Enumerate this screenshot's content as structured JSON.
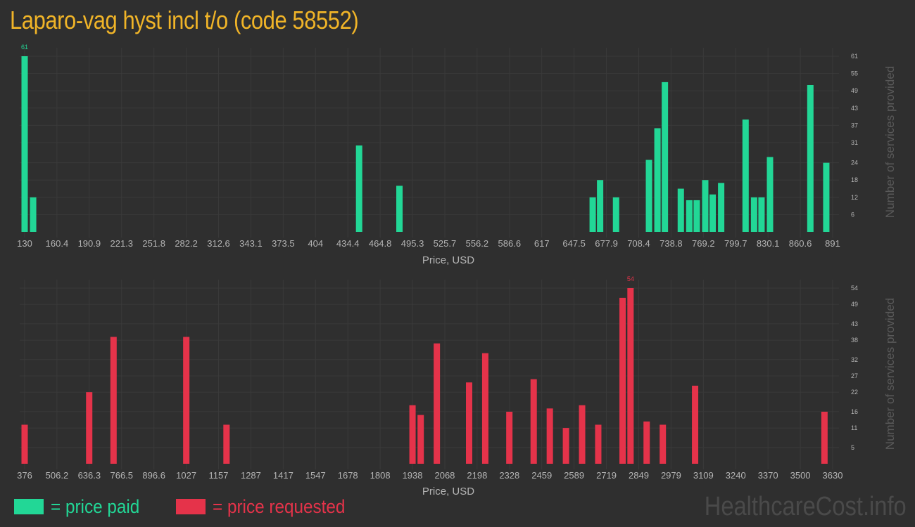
{
  "title": "Laparo-vag hyst incl t/o (code 58552)",
  "legend": {
    "paid_label": "= price paid",
    "requested_label": "= price requested"
  },
  "watermark": "HealthcareCost.info",
  "colors": {
    "background": "#2f2f2f",
    "paid": "#22d796",
    "requested": "#e5334a",
    "title": "#f0b428",
    "axis_text": "#b4b4b4"
  },
  "chart_data": [
    {
      "type": "bar",
      "name_ref": "price paid",
      "xlabel": "Price, USD",
      "ylabel": "Number of services provided",
      "xlim": [
        130,
        891
      ],
      "ylim": [
        0,
        61
      ],
      "x_ticks": [
        "130",
        "160.4",
        "190.9",
        "221.3",
        "251.8",
        "282.2",
        "312.6",
        "343.1",
        "373.5",
        "404",
        "434.4",
        "464.8",
        "495.3",
        "525.7",
        "556.2",
        "586.6",
        "617",
        "647.5",
        "677.9",
        "708.4",
        "738.8",
        "769.2",
        "799.7",
        "830.1",
        "860.6",
        "891"
      ],
      "y_ticks": [
        6,
        12,
        18,
        24,
        31,
        37,
        43,
        49,
        55,
        61
      ],
      "bars": [
        {
          "x": 130,
          "y": 61
        },
        {
          "x": 138,
          "y": 12
        },
        {
          "x": 445,
          "y": 30
        },
        {
          "x": 483,
          "y": 16
        },
        {
          "x": 665,
          "y": 12
        },
        {
          "x": 672,
          "y": 18
        },
        {
          "x": 687,
          "y": 12
        },
        {
          "x": 718,
          "y": 25
        },
        {
          "x": 726,
          "y": 36
        },
        {
          "x": 733,
          "y": 52
        },
        {
          "x": 748,
          "y": 15
        },
        {
          "x": 756,
          "y": 11
        },
        {
          "x": 763,
          "y": 11
        },
        {
          "x": 771,
          "y": 18
        },
        {
          "x": 778,
          "y": 13
        },
        {
          "x": 786,
          "y": 17
        },
        {
          "x": 809,
          "y": 39
        },
        {
          "x": 817,
          "y": 12
        },
        {
          "x": 824,
          "y": 12
        },
        {
          "x": 832,
          "y": 26
        },
        {
          "x": 870,
          "y": 51
        },
        {
          "x": 885,
          "y": 24
        }
      ],
      "max_label": "61"
    },
    {
      "type": "bar",
      "name_ref": "price requested",
      "xlabel": "Price, USD",
      "ylabel": "Number of services provided",
      "xlim": [
        376,
        3630
      ],
      "ylim": [
        0,
        54
      ],
      "x_ticks": [
        "376",
        "506.2",
        "636.3",
        "766.5",
        "896.6",
        "1027",
        "1157",
        "1287",
        "1417",
        "1547",
        "1678",
        "1808",
        "1938",
        "2068",
        "2198",
        "2328",
        "2459",
        "2589",
        "2719",
        "2849",
        "2979",
        "3109",
        "3240",
        "3370",
        "3500",
        "3630"
      ],
      "y_ticks": [
        5,
        11,
        16,
        22,
        27,
        32,
        38,
        43,
        49,
        54
      ],
      "bars": [
        {
          "x": 376,
          "y": 12
        },
        {
          "x": 636,
          "y": 22
        },
        {
          "x": 734,
          "y": 39
        },
        {
          "x": 1027,
          "y": 39
        },
        {
          "x": 1189,
          "y": 12
        },
        {
          "x": 1938,
          "y": 18
        },
        {
          "x": 1971,
          "y": 15
        },
        {
          "x": 2036,
          "y": 37
        },
        {
          "x": 2166,
          "y": 25
        },
        {
          "x": 2231,
          "y": 34
        },
        {
          "x": 2328,
          "y": 16
        },
        {
          "x": 2426,
          "y": 26
        },
        {
          "x": 2491,
          "y": 17
        },
        {
          "x": 2556,
          "y": 11
        },
        {
          "x": 2621,
          "y": 18
        },
        {
          "x": 2686,
          "y": 12
        },
        {
          "x": 2784,
          "y": 51
        },
        {
          "x": 2816,
          "y": 54
        },
        {
          "x": 2881,
          "y": 13
        },
        {
          "x": 2946,
          "y": 12
        },
        {
          "x": 3076,
          "y": 24
        },
        {
          "x": 3597,
          "y": 16
        }
      ],
      "max_label": "54"
    }
  ]
}
